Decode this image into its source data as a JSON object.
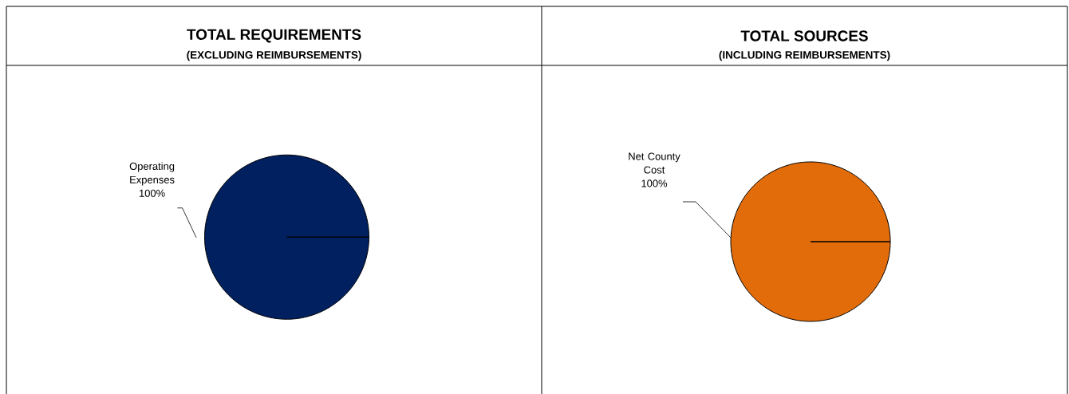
{
  "chart_data": [
    {
      "type": "pie",
      "title": "TOTAL REQUIREMENTS",
      "subtitle": "(EXCLUDING REIMBURSEMENTS)",
      "categories": [
        "Operating Expenses"
      ],
      "values": [
        100
      ],
      "value_labels": [
        "100%"
      ],
      "colors": [
        "#002060"
      ]
    },
    {
      "type": "pie",
      "title": "TOTAL SOURCES",
      "subtitle": "(INCLUDING REIMBURSEMENTS)",
      "categories": [
        "Net County Cost"
      ],
      "values": [
        100
      ],
      "value_labels": [
        "100%"
      ],
      "colors": [
        "#E36C0A"
      ]
    }
  ]
}
